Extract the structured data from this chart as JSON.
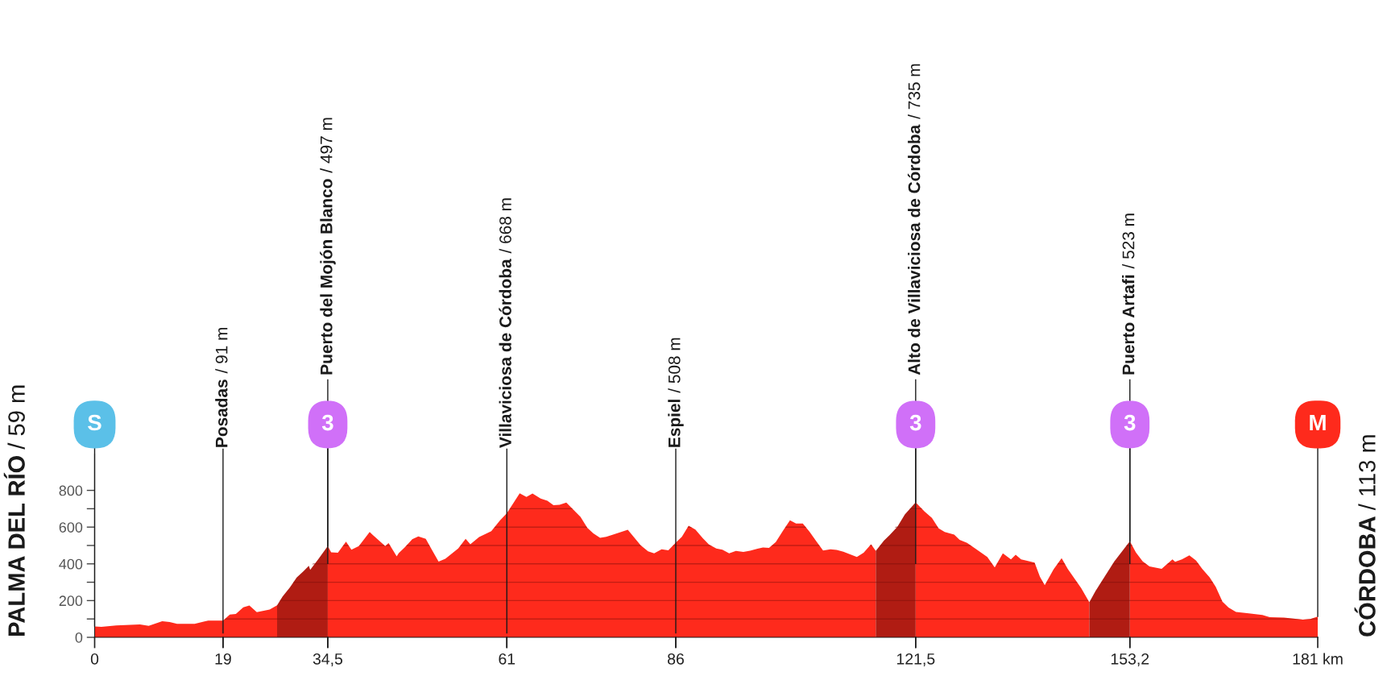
{
  "chart_data": {
    "type": "area",
    "series": [
      {
        "color": "#fe2a1c",
        "x": [
          0,
          1.0,
          3.2,
          6.7,
          8.0,
          10.0,
          11.1,
          12.2,
          14.8,
          16.8,
          19,
          20.0,
          20.9,
          22.0,
          22.9,
          24.0,
          25.9,
          27.0,
          27.8,
          28.9,
          29.9,
          30.9,
          31.7,
          31.9,
          33.1,
          34.5,
          35.0,
          36.0,
          37.2,
          38.0,
          39.1,
          40.7,
          41.1,
          43.0,
          43.5,
          44.7,
          45.0,
          45.9,
          47.0,
          47.9,
          49.0,
          49.9,
          50.9,
          51.9,
          53.8,
          54.9,
          55.6,
          56.9,
          58.7,
          60.0,
          61,
          62.9,
          63.9,
          64.8,
          66.0,
          67.0,
          67.9,
          68.8,
          69.8,
          71.9,
          72.9,
          73.8,
          74.8,
          75.7,
          77.0,
          78.9,
          80.8,
          81.9,
          82.8,
          83.9,
          84.9,
          86,
          86.9,
          87.9,
          88.9,
          90.0,
          90.9,
          92.0,
          92.9,
          93.9,
          94.9,
          96.0,
          97.0,
          98.1,
          98.9,
          99.8,
          100.8,
          101.9,
          102.9,
          103.8,
          104.8,
          105.8,
          106.9,
          107.8,
          108.9,
          109.8,
          110.8,
          112.8,
          113.8,
          114.9,
          115.6,
          116.8,
          117.6,
          118.8,
          119.9,
          121.5,
          122.8,
          123.9,
          124.9,
          125.8,
          127.2,
          128.0,
          129.1,
          130.4,
          132.1,
          133.2,
          134.4,
          135.6,
          136.3,
          137.1,
          139.1,
          139.9,
          140.6,
          141.9,
          143.1,
          144.0,
          146.0,
          147.2,
          148.1,
          150.9,
          153.2,
          154.1,
          155.1,
          156.1,
          157.9,
          159.5,
          159.9,
          160.9,
          162.0,
          163.0,
          163.9,
          165.0,
          165.9,
          166.9,
          167.8,
          168.9,
          170.8,
          172.8,
          173.9,
          176.0,
          178.8,
          179.9,
          181
        ],
        "values": [
          59,
          57,
          65,
          70,
          62,
          88,
          83,
          73,
          73,
          91,
          91,
          124,
          127,
          163,
          173,
          137,
          151,
          174,
          null,
          null,
          null,
          null,
          null,
          null,
          null,
          497,
          463,
          461,
          521,
          477,
          497,
          573,
          559,
          497,
          513,
          441,
          458,
          490,
          534,
          549,
          536,
          477,
          412,
          428,
          484,
          536,
          507,
          546,
          578,
          637,
          675,
          784,
          764,
          783,
          756,
          743,
          719,
          721,
          734,
          656,
          596,
          566,
          542,
          547,
          563,
          585,
          501,
          468,
          457,
          479,
          474,
          515,
          547,
          607,
          587,
          539,
          506,
          484,
          477,
          457,
          470,
          465,
          471,
          482,
          489,
          487,
          519,
          582,
          637,
          620,
          620,
          575,
          517,
          473,
          479,
          476,
          466,
          438,
          460,
          507,
          470,
          null,
          null,
          null,
          null,
          735,
          685,
          650,
          593,
          574,
          559,
          531,
          514,
          481,
          437,
          381,
          457,
          424,
          450,
          424,
          407,
          329,
          284,
          369,
          431,
          373,
          267,
          191,
          null,
          null,
          523,
          462,
          413,
          386,
          373,
          424,
          411,
          424,
          446,
          418,
          373,
          327,
          275,
          194,
          162,
          138,
          130,
          122,
          110,
          107,
          97,
          100,
          113
        ]
      },
      {
        "color": "#b01c13",
        "x": [
          27.0,
          27.8,
          28.9,
          29.9,
          30.9,
          31.7,
          31.9,
          33.1,
          34.5
        ],
        "values": [
          174,
          222,
          272,
          326,
          360,
          389,
          367,
          425,
          497
        ]
      },
      {
        "color": "#b01c13",
        "x": [
          115.6,
          116.8,
          117.6,
          118.8,
          119.9,
          121.5
        ],
        "values": [
          470,
          526,
          555,
          602,
          669,
          735
        ]
      },
      {
        "color": "#b01c13",
        "x": [
          147.2,
          148.1,
          150.9,
          153.2
        ],
        "values": [
          191,
          251,
          413,
          523
        ]
      }
    ],
    "xlim": [
      0,
      181
    ],
    "xticks": [
      0,
      19,
      {
        "value": 34.5,
        "label": "34,5"
      },
      61,
      86,
      {
        "value": 121.5,
        "label": "121,5"
      },
      {
        "value": 153.2,
        "label": "153,2"
      },
      {
        "value": 181,
        "label": "181 km"
      }
    ],
    "ylim": [
      0,
      1000
    ],
    "yticks": [
      0,
      {
        "value": 100,
        "label": null
      },
      200,
      {
        "value": 300,
        "label": null
      },
      400,
      {
        "value": 500,
        "label": null
      },
      600,
      {
        "value": 700,
        "label": null
      },
      800
    ],
    "grid": "y",
    "ref_lines": [
      {
        "axis": "x",
        "value": 19,
        "label": "Posadas / 91 m"
      },
      {
        "axis": "x",
        "value": 34.5,
        "label": "Puerto del Mojón Blanco / 497 m"
      },
      {
        "axis": "x",
        "value": 61,
        "label": "Villaviciosa de Córdoba / 668 m"
      },
      {
        "axis": "x",
        "value": 86,
        "label": "Espiel / 508 m"
      },
      {
        "axis": "x",
        "value": 121.5,
        "label": "Alto de Villaviciosa de Córdoba / 735 m"
      },
      {
        "axis": "x",
        "value": 153.2,
        "label": "Puerto Artafi / 523 m"
      }
    ],
    "annotations": [
      "PALMA DEL RÍO / 59 m",
      "CÓRDOBA / 113 m",
      {
        "text": "S",
        "x": 0,
        "y": 59
      },
      {
        "text": "3",
        "x": 34.5,
        "y": 497
      },
      {
        "text": "3",
        "x": 121.5,
        "y": 735
      },
      {
        "text": "3",
        "x": 153.2,
        "y": 523
      },
      {
        "text": "M",
        "x": 181,
        "y": 113
      }
    ]
  }
}
